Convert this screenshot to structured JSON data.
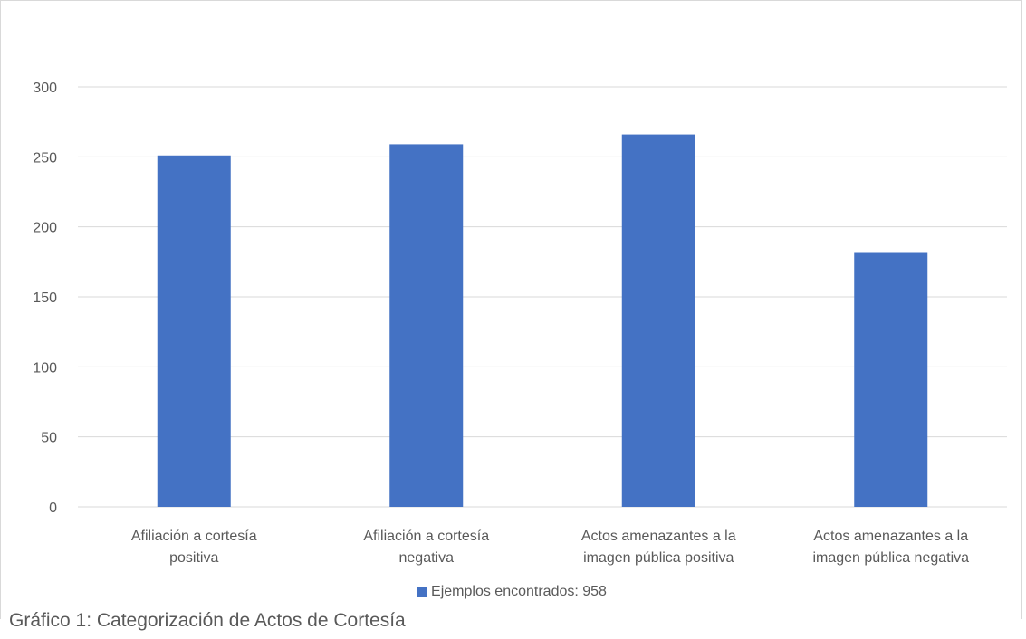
{
  "chart_data": {
    "type": "bar",
    "categories": [
      [
        "Afiliación a cortesía",
        "positiva"
      ],
      [
        "Afiliación a cortesía",
        "negativa"
      ],
      [
        "Actos amenazantes a la",
        "imagen pública positiva"
      ],
      [
        "Actos amenazantes a la",
        "imagen pública negativa"
      ]
    ],
    "series": [
      {
        "name": "Ejemplos encontrados: 958",
        "values": [
          251,
          259,
          266,
          182
        ],
        "color": "#4472C4"
      }
    ],
    "y_ticks": [
      "0",
      "50",
      "100",
      "150",
      "200",
      "250",
      "300"
    ],
    "ylim": [
      0,
      300
    ],
    "grid": true,
    "legend_position": "bottom"
  },
  "caption": "Gráfico 1: Categorización de Actos de Cortesía",
  "colors": {
    "bar": "#4472C4",
    "gridline": "#d9d9d9",
    "text": "#595959"
  }
}
